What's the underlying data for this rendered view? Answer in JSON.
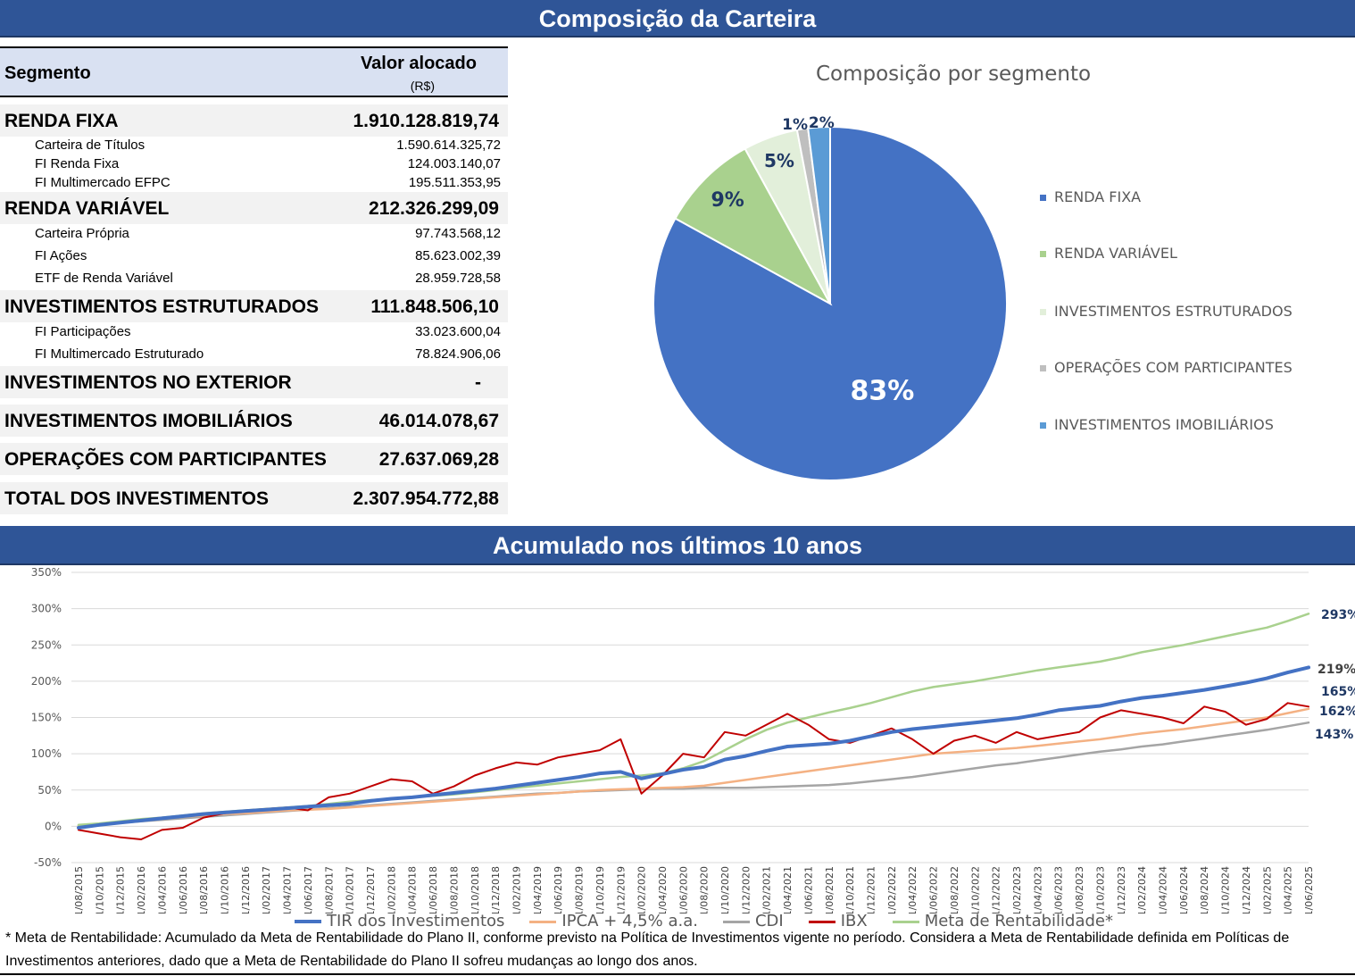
{
  "header_top": "Composição da Carteira",
  "header_mid": "Acumulado nos últimos 10 anos",
  "table": {
    "col_segment": "Segmento",
    "col_value": "Valor alocado",
    "col_unit": "(R$)",
    "rows": [
      {
        "label": "RENDA FIXA",
        "value": "1.910.128.819,74",
        "level": "main"
      },
      {
        "label": "Carteira de Títulos",
        "value": "1.590.614.325,72",
        "level": "sub"
      },
      {
        "label": "FI Renda Fixa",
        "value": "124.003.140,07",
        "level": "sub"
      },
      {
        "label": "FI Multimercado EFPC",
        "value": "195.511.353,95",
        "level": "sub"
      },
      {
        "label": "RENDA VARIÁVEL",
        "value": "212.326.299,09",
        "level": "main"
      },
      {
        "label": "Carteira Própria",
        "value": "97.743.568,12",
        "level": "sub"
      },
      {
        "label": "FI Ações",
        "value": "85.623.002,39",
        "level": "sub"
      },
      {
        "label": "ETF de Renda Variável",
        "value": "28.959.728,58",
        "level": "sub"
      },
      {
        "label": "INVESTIMENTOS ESTRUTURADOS",
        "value": "111.848.506,10",
        "level": "main"
      },
      {
        "label": "FI Participações",
        "value": "33.023.600,04",
        "level": "sub"
      },
      {
        "label": "FI Multimercado Estruturado",
        "value": "78.824.906,06",
        "level": "sub"
      },
      {
        "label": "INVESTIMENTOS NO EXTERIOR",
        "value": "-",
        "level": "main"
      },
      {
        "label": "INVESTIMENTOS IMOBILIÁRIOS",
        "value": "46.014.078,67",
        "level": "main"
      },
      {
        "label": "OPERAÇÕES COM PARTICIPANTES",
        "value": "27.637.069,28",
        "level": "main"
      },
      {
        "label": "TOTAL DOS INVESTIMENTOS",
        "value": "2.307.954.772,88",
        "level": "main"
      }
    ]
  },
  "chart_data": [
    {
      "type": "pie",
      "title": "Composição por segmento",
      "labels": [
        "RENDA FIXA",
        "RENDA VARIÁVEL",
        "INVESTIMENTOS ESTRUTURADOS",
        "OPERAÇÕES COM PARTICIPANTES",
        "INVESTIMENTOS IMOBILIÁRIOS"
      ],
      "values": [
        83,
        9,
        5,
        1,
        2
      ],
      "data_labels": [
        "83%",
        "9%",
        "5%",
        "1%",
        "2%"
      ],
      "colors": [
        "#4472c4",
        "#a9d18e",
        "#e2efda",
        "#bfbfbf",
        "#5b9bd5"
      ],
      "legend": "right"
    },
    {
      "type": "line",
      "x_labels": [
        "01/08/2015",
        "01/10/2015",
        "01/12/2015",
        "01/02/2016",
        "01/04/2016",
        "01/06/2016",
        "01/08/2016",
        "01/10/2016",
        "01/12/2016",
        "01/02/2017",
        "01/04/2017",
        "01/06/2017",
        "01/08/2017",
        "01/10/2017",
        "01/12/2017",
        "01/02/2018",
        "01/04/2018",
        "01/06/2018",
        "01/08/2018",
        "01/10/2018",
        "01/12/2018",
        "01/02/2019",
        "01/04/2019",
        "01/06/2019",
        "01/08/2019",
        "01/10/2019",
        "01/12/2019",
        "01/02/2020",
        "01/04/2020",
        "01/06/2020",
        "01/08/2020",
        "01/10/2020",
        "01/12/2020",
        "01/02/2021",
        "01/04/2021",
        "01/06/2021",
        "01/08/2021",
        "01/10/2021",
        "01/12/2021",
        "01/02/2022",
        "01/04/2022",
        "01/06/2022",
        "01/08/2022",
        "01/10/2022",
        "01/12/2022",
        "01/02/2023",
        "01/04/2023",
        "01/06/2023",
        "01/08/2023",
        "01/10/2023",
        "01/12/2023",
        "01/02/2024",
        "01/04/2024",
        "01/06/2024",
        "01/08/2024",
        "01/10/2024",
        "01/12/2024",
        "01/02/2025",
        "01/04/2025",
        "01/06/2025"
      ],
      "y_ticks": [
        "350%",
        "300%",
        "250%",
        "200%",
        "150%",
        "100%",
        "50%",
        "0%",
        "-50%"
      ],
      "ylim": [
        -50,
        350
      ],
      "grid": true,
      "legend": "bottom",
      "series": [
        {
          "name": "TIR dos Investimentos",
          "color": "#4472c4",
          "width": 4,
          "end_label": "219%",
          "values": [
            -2,
            2,
            5,
            8,
            11,
            14,
            17,
            19,
            21,
            23,
            25,
            27,
            29,
            31,
            35,
            38,
            40,
            43,
            46,
            49,
            52,
            56,
            60,
            64,
            68,
            73,
            75,
            66,
            72,
            78,
            82,
            92,
            97,
            104,
            110,
            112,
            114,
            118,
            124,
            130,
            134,
            137,
            140,
            143,
            146,
            149,
            154,
            160,
            163,
            166,
            172,
            177,
            180,
            184,
            188,
            193,
            198,
            204,
            212,
            219
          ]
        },
        {
          "name": "IPCA + 4,5% a.a.",
          "color": "#f4b183",
          "width": 2.5,
          "end_label": "162%",
          "values": [
            1,
            3,
            6,
            9,
            11,
            13,
            15,
            17,
            18,
            20,
            22,
            23,
            24,
            26,
            28,
            30,
            32,
            34,
            36,
            38,
            40,
            42,
            44,
            46,
            48,
            50,
            51,
            52,
            53,
            54,
            56,
            60,
            64,
            68,
            72,
            76,
            80,
            84,
            88,
            92,
            96,
            100,
            102,
            104,
            106,
            108,
            111,
            114,
            117,
            120,
            124,
            128,
            131,
            134,
            138,
            142,
            146,
            150,
            156,
            162
          ]
        },
        {
          "name": "CDI",
          "color": "#a5a5a5",
          "width": 2.5,
          "end_label": "143%",
          "values": [
            1,
            3,
            5,
            7,
            9,
            11,
            13,
            15,
            17,
            19,
            21,
            23,
            25,
            27,
            29,
            31,
            33,
            35,
            37,
            39,
            41,
            43,
            45,
            46,
            48,
            49,
            50,
            51,
            52,
            52,
            53,
            53,
            53,
            54,
            55,
            56,
            57,
            59,
            62,
            65,
            68,
            72,
            76,
            80,
            84,
            87,
            91,
            95,
            99,
            103,
            106,
            110,
            113,
            117,
            121,
            125,
            129,
            133,
            138,
            143
          ]
        },
        {
          "name": "IBX",
          "color": "#c00000",
          "width": 2,
          "end_label": "165%",
          "values": [
            -5,
            -10,
            -15,
            -18,
            -5,
            -2,
            12,
            18,
            22,
            24,
            26,
            22,
            40,
            45,
            55,
            65,
            62,
            45,
            55,
            70,
            80,
            88,
            85,
            95,
            100,
            105,
            120,
            45,
            70,
            100,
            95,
            130,
            125,
            140,
            155,
            140,
            120,
            115,
            125,
            135,
            120,
            100,
            118,
            125,
            115,
            130,
            120,
            125,
            130,
            150,
            160,
            155,
            150,
            142,
            165,
            158,
            140,
            148,
            170,
            165
          ]
        },
        {
          "name": "Meta de Rentabilidade*",
          "color": "#a9d18e",
          "width": 2.5,
          "end_label": "293%",
          "values": [
            2,
            4,
            7,
            10,
            12,
            15,
            18,
            20,
            22,
            24,
            26,
            28,
            31,
            34,
            36,
            38,
            40,
            42,
            44,
            47,
            50,
            53,
            56,
            59,
            62,
            65,
            68,
            70,
            73,
            80,
            90,
            105,
            120,
            133,
            143,
            150,
            157,
            163,
            170,
            178,
            186,
            192,
            196,
            200,
            205,
            210,
            215,
            219,
            223,
            227,
            233,
            240,
            245,
            250,
            256,
            262,
            268,
            274,
            283,
            293
          ]
        }
      ]
    }
  ],
  "footnote": "* Meta de Rentabilidade: Acumulado da Meta de Rentabilidade do Plano II, conforme previsto na Política de Investimentos vigente no período. Considera a Meta de Rentabilidade definida em Políticas de Investimentos anteriores, dado que a Meta de Rentabilidade do Plano II sofreu mudanças ao longo dos anos."
}
